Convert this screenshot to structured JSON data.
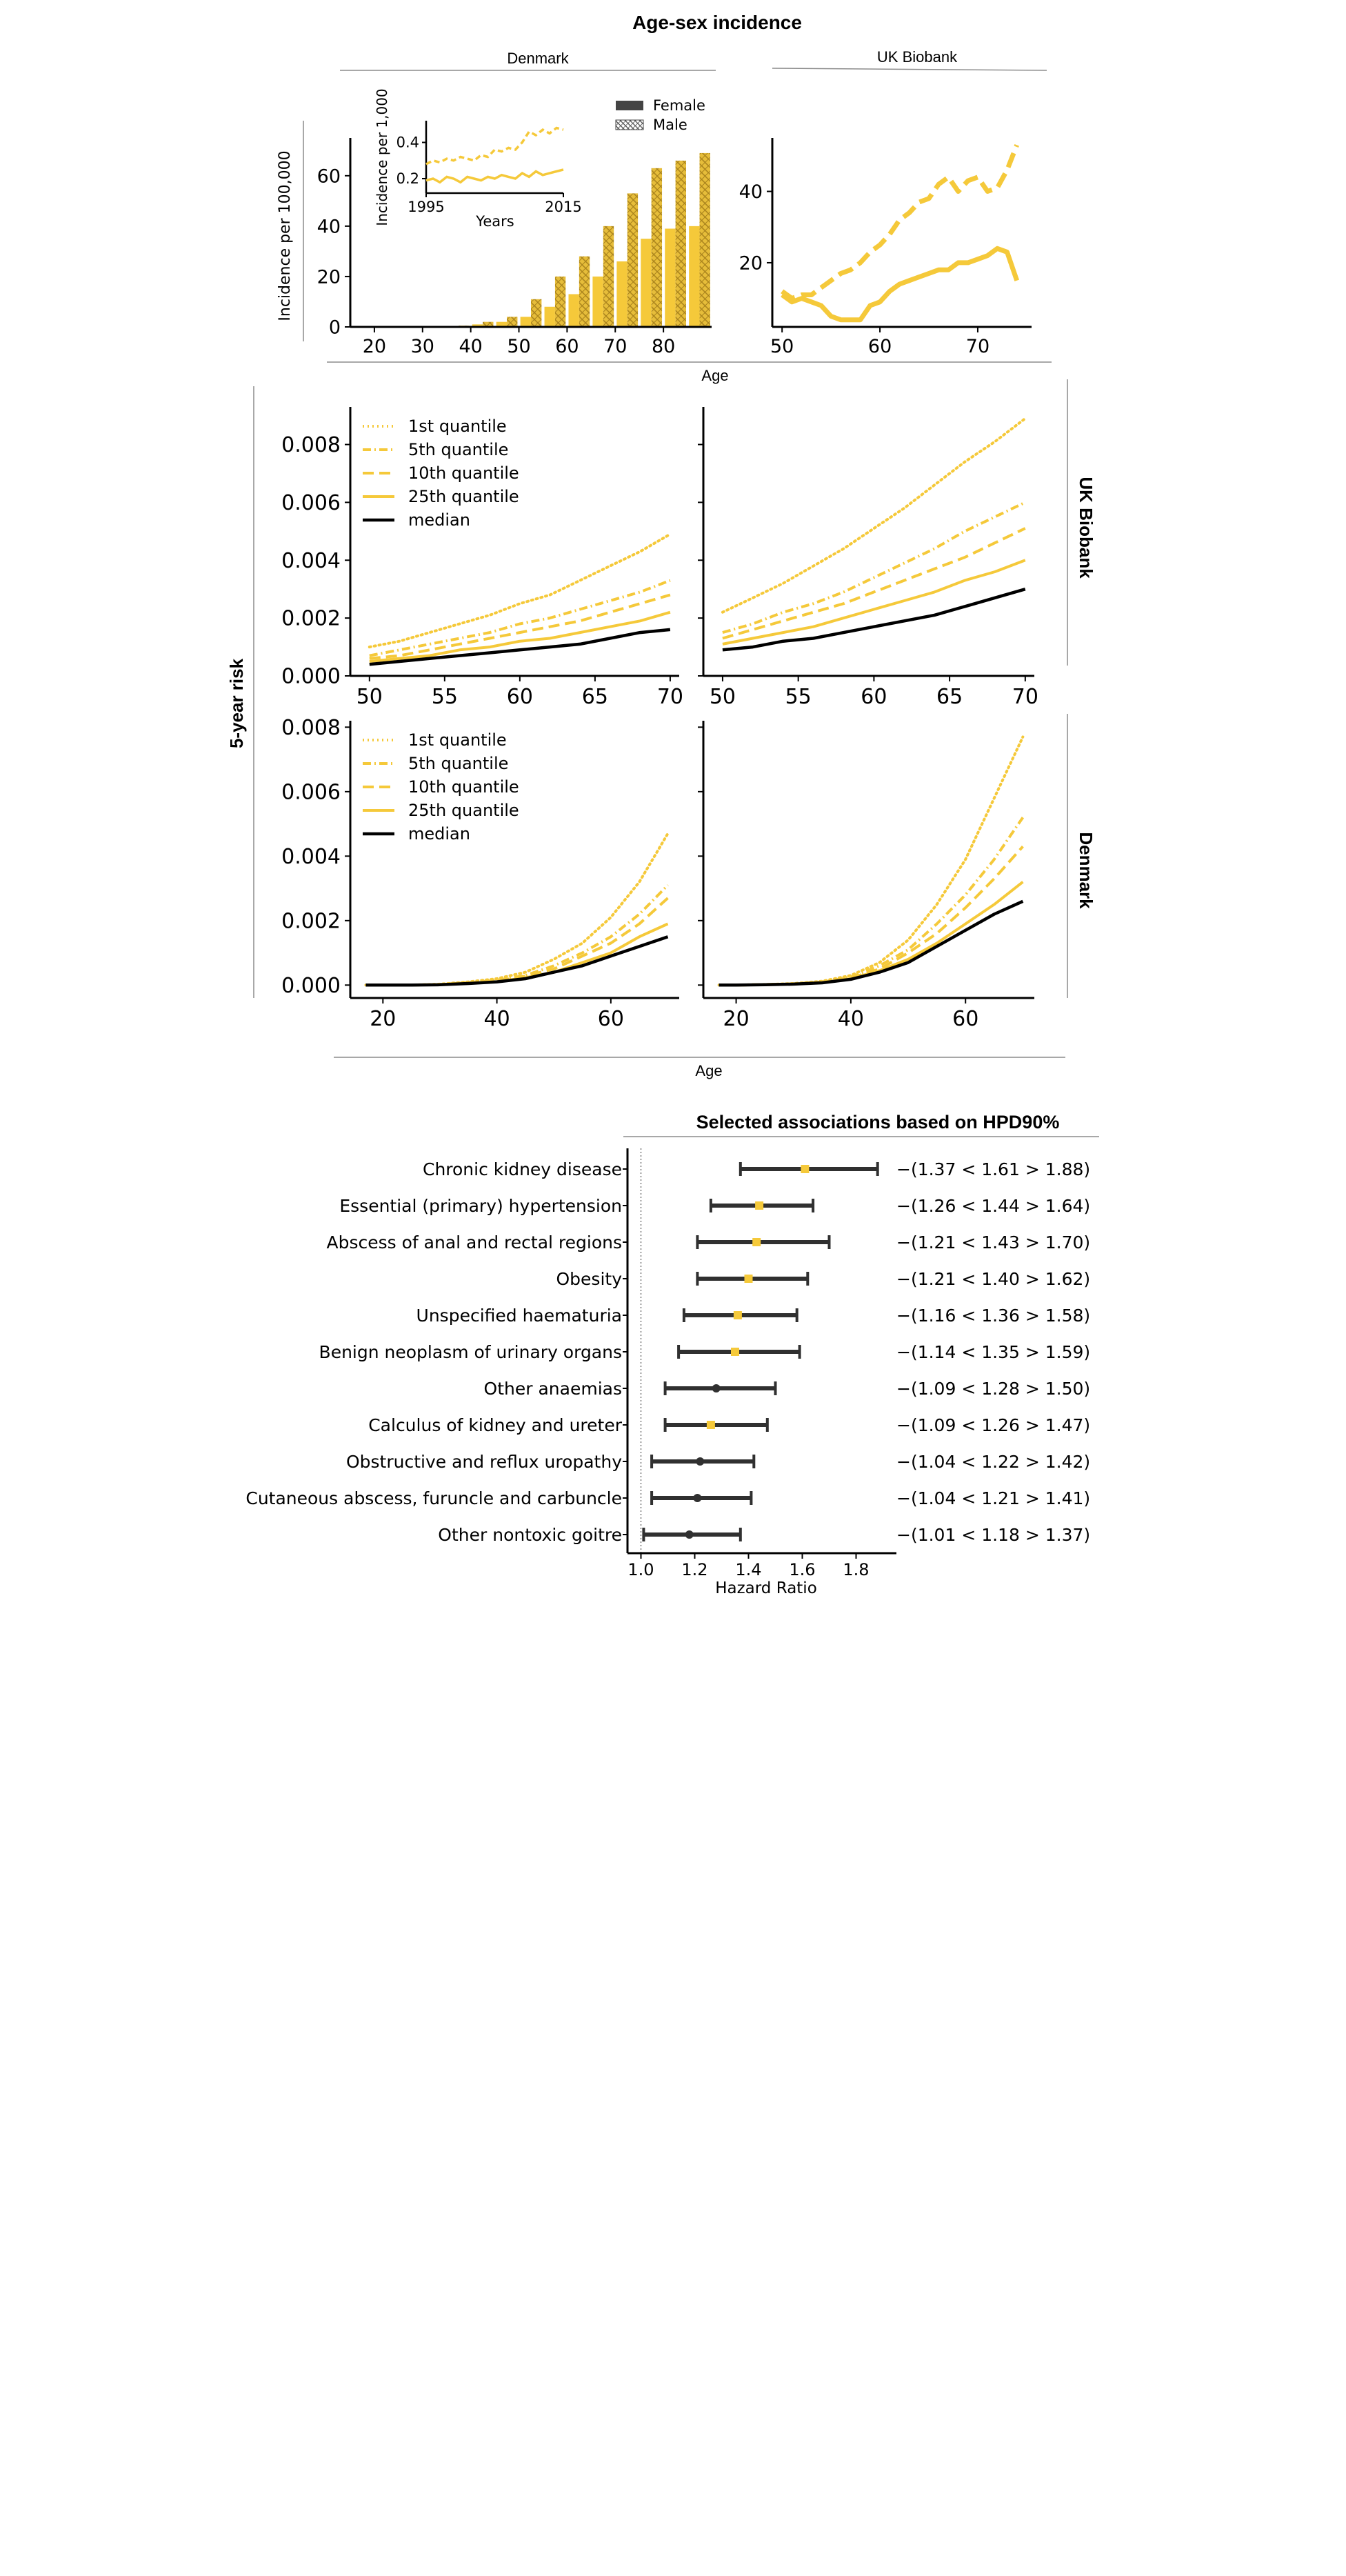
{
  "figure": {
    "title": "Age-sex incidence",
    "shared_xlabel_top": "Age",
    "shared_xlabel_bottom": "Age",
    "risk_ylabel": "5-year risk",
    "row_labels": [
      "UK Biobank",
      "Denmark"
    ],
    "colors": {
      "main": "#f5c93a",
      "dark": "#d9a521",
      "black": "#000000",
      "grey": "#8c8c8c",
      "ci": "#303030"
    }
  },
  "chart_data": [
    {
      "id": "denmark-incidence",
      "type": "bar",
      "title": "Denmark",
      "ylabel": "Incidence per 100,000",
      "xlabel": "",
      "xlim": [
        15,
        90
      ],
      "ylim": [
        0,
        75
      ],
      "xticks": [
        20,
        30,
        40,
        50,
        60,
        70,
        80
      ],
      "yticks": [
        0,
        20,
        40,
        60
      ],
      "legend": {
        "placement": "top-right",
        "entries": [
          "Female",
          "Male"
        ]
      },
      "categories": [
        37.5,
        42.5,
        47.5,
        52.5,
        57.5,
        62.5,
        67.5,
        72.5,
        77.5,
        82.5,
        87.5
      ],
      "series": [
        {
          "name": "Female",
          "values": [
            0.3,
            1,
            2,
            4,
            8,
            13,
            20,
            26,
            35,
            39,
            40
          ]
        },
        {
          "name": "Male",
          "values": [
            0.5,
            2,
            4,
            11,
            20,
            28,
            40,
            53,
            63,
            66,
            69
          ]
        }
      ],
      "inset": {
        "type": "line",
        "ylabel": "Incidence per 1,000",
        "xlabel": "Years",
        "xlim": [
          1995,
          2015
        ],
        "ylim": [
          0.12,
          0.52
        ],
        "xticks": [
          1995,
          2015
        ],
        "yticks": [
          0.2,
          0.4
        ],
        "series": [
          {
            "name": "Female",
            "style": "solid",
            "x": [
              1995,
              1996,
              1997,
              1998,
              1999,
              2000,
              2001,
              2002,
              2003,
              2004,
              2005,
              2006,
              2007,
              2008,
              2009,
              2010,
              2011,
              2012,
              2013,
              2014,
              2015
            ],
            "values": [
              0.19,
              0.2,
              0.18,
              0.21,
              0.2,
              0.18,
              0.21,
              0.2,
              0.19,
              0.21,
              0.2,
              0.22,
              0.21,
              0.2,
              0.23,
              0.21,
              0.24,
              0.22,
              0.23,
              0.24,
              0.25
            ]
          },
          {
            "name": "Male",
            "style": "dashed",
            "x": [
              1995,
              1996,
              1997,
              1998,
              1999,
              2000,
              2001,
              2002,
              2003,
              2004,
              2005,
              2006,
              2007,
              2008,
              2009,
              2010,
              2011,
              2012,
              2013,
              2014,
              2015
            ],
            "values": [
              0.28,
              0.3,
              0.29,
              0.31,
              0.3,
              0.32,
              0.31,
              0.3,
              0.33,
              0.32,
              0.36,
              0.35,
              0.37,
              0.36,
              0.4,
              0.46,
              0.44,
              0.47,
              0.45,
              0.48,
              0.47
            ]
          }
        ]
      }
    },
    {
      "id": "ukb-incidence",
      "type": "line",
      "title": "UK Biobank",
      "xlabel": "",
      "ylabel": "",
      "xlim": [
        49,
        75.5
      ],
      "ylim": [
        2,
        55
      ],
      "xticks": [
        50,
        60,
        70
      ],
      "yticks": [
        20,
        40
      ],
      "series": [
        {
          "name": "Female",
          "style": "solid",
          "x": [
            50,
            51,
            52,
            53,
            54,
            55,
            56,
            57,
            58,
            59,
            60,
            61,
            62,
            63,
            64,
            65,
            66,
            67,
            68,
            69,
            70,
            71,
            72,
            73,
            74
          ],
          "values": [
            11,
            9,
            10,
            9,
            8,
            5,
            4,
            4,
            4,
            8,
            9,
            12,
            14,
            15,
            16,
            17,
            18,
            18,
            20,
            20,
            21,
            22,
            24,
            23,
            15
          ]
        },
        {
          "name": "Male",
          "style": "dashed",
          "x": [
            50,
            51,
            52,
            53,
            54,
            55,
            56,
            57,
            58,
            59,
            60,
            61,
            62,
            63,
            64,
            65,
            66,
            67,
            68,
            69,
            70,
            71,
            72,
            73,
            74
          ],
          "values": [
            12,
            10,
            11,
            11,
            13,
            15,
            17,
            18,
            20,
            23,
            25,
            28,
            32,
            34,
            37,
            38,
            42,
            44,
            40,
            43,
            44,
            40,
            41,
            46,
            53
          ]
        }
      ]
    },
    {
      "id": "risk-ukb-female",
      "type": "line",
      "xlabel": "",
      "ylabel": "",
      "xlim": [
        49,
        70.6
      ],
      "ylim": [
        0,
        0.0093
      ],
      "xticks": [
        50,
        55,
        60,
        65,
        70
      ],
      "yticks": [
        0.0,
        0.002,
        0.004,
        0.006,
        0.008
      ],
      "ytick_labels": [
        "0.000",
        "0.002",
        "0.004",
        "0.006",
        "0.008"
      ],
      "legend": {
        "placement": "top-left",
        "entries": [
          "1st quantile",
          "5th quantile",
          "10th quantile",
          "25th quantile",
          "median"
        ]
      },
      "x": [
        50,
        52,
        54,
        56,
        58,
        60,
        62,
        64,
        66,
        68,
        70
      ],
      "series": [
        {
          "name": "1st quantile",
          "style": "dotted",
          "values": [
            0.001,
            0.0012,
            0.0015,
            0.0018,
            0.0021,
            0.0025,
            0.0028,
            0.0033,
            0.0038,
            0.0043,
            0.0049
          ]
        },
        {
          "name": "5th quantile",
          "style": "dashdot",
          "values": [
            0.0007,
            0.0009,
            0.0011,
            0.0013,
            0.0015,
            0.0018,
            0.002,
            0.0023,
            0.0026,
            0.0029,
            0.0033
          ]
        },
        {
          "name": "10th quantile",
          "style": "dashed",
          "values": [
            0.0006,
            0.0007,
            0.0009,
            0.0011,
            0.0013,
            0.0015,
            0.0017,
            0.0019,
            0.0022,
            0.0025,
            0.0028
          ]
        },
        {
          "name": "25th quantile",
          "style": "solid",
          "values": [
            0.0005,
            0.0006,
            0.0007,
            0.0009,
            0.001,
            0.0012,
            0.0013,
            0.0015,
            0.0017,
            0.0019,
            0.0022
          ]
        },
        {
          "name": "median",
          "style": "median",
          "values": [
            0.0004,
            0.0005,
            0.0006,
            0.0007,
            0.0008,
            0.0009,
            0.001,
            0.0011,
            0.0013,
            0.0015,
            0.0016
          ]
        }
      ]
    },
    {
      "id": "risk-ukb-male",
      "type": "line",
      "xlabel": "",
      "ylabel": "",
      "xlim": [
        49,
        70.6
      ],
      "ylim": [
        0,
        0.0093
      ],
      "xticks": [
        50,
        55,
        60,
        65,
        70
      ],
      "yticks": [
        0.0,
        0.002,
        0.004,
        0.006,
        0.008
      ],
      "x": [
        50,
        52,
        54,
        56,
        58,
        60,
        62,
        64,
        66,
        68,
        70
      ],
      "series": [
        {
          "name": "1st quantile",
          "style": "dotted",
          "values": [
            0.0022,
            0.0027,
            0.0032,
            0.0038,
            0.0044,
            0.0051,
            0.0058,
            0.0066,
            0.0074,
            0.0081,
            0.0089
          ]
        },
        {
          "name": "5th quantile",
          "style": "dashdot",
          "values": [
            0.0015,
            0.0018,
            0.0022,
            0.0025,
            0.0029,
            0.0034,
            0.0039,
            0.0044,
            0.005,
            0.0055,
            0.006
          ]
        },
        {
          "name": "10th quantile",
          "style": "dashed",
          "values": [
            0.0013,
            0.0016,
            0.0019,
            0.0022,
            0.0025,
            0.0029,
            0.0033,
            0.0037,
            0.0041,
            0.0046,
            0.0051
          ]
        },
        {
          "name": "25th quantile",
          "style": "solid",
          "values": [
            0.0011,
            0.0013,
            0.0015,
            0.0017,
            0.002,
            0.0023,
            0.0026,
            0.0029,
            0.0033,
            0.0036,
            0.004
          ]
        },
        {
          "name": "median",
          "style": "median",
          "values": [
            0.0009,
            0.001,
            0.0012,
            0.0013,
            0.0015,
            0.0017,
            0.0019,
            0.0021,
            0.0024,
            0.0027,
            0.003
          ]
        }
      ]
    },
    {
      "id": "risk-dk-female",
      "type": "line",
      "xlabel": "",
      "ylabel": "",
      "xlim": [
        15,
        72
      ],
      "ylim": [
        -0.0004,
        0.0082
      ],
      "xticks": [
        20,
        40,
        60
      ],
      "yticks": [
        0.0,
        0.002,
        0.004,
        0.006,
        0.008
      ],
      "ytick_labels": [
        "0.000",
        "0.002",
        "0.004",
        "0.006",
        "0.008"
      ],
      "legend": {
        "placement": "top-left",
        "entries": [
          "1st quantile",
          "5th quantile",
          "10th quantile",
          "25th quantile",
          "median"
        ]
      },
      "x": [
        17,
        20,
        25,
        30,
        35,
        40,
        45,
        50,
        55,
        60,
        65,
        70
      ],
      "series": [
        {
          "name": "1st quantile",
          "style": "dotted",
          "values": [
            0.0,
            0.0,
            0.0,
            3e-05,
            0.0001,
            0.0002,
            0.0004,
            0.0008,
            0.0013,
            0.0021,
            0.0032,
            0.0047
          ]
        },
        {
          "name": "5th quantile",
          "style": "dashdot",
          "values": [
            0.0,
            0.0,
            0.0,
            2e-05,
            8e-05,
            0.00015,
            0.0003,
            0.0006,
            0.001,
            0.0015,
            0.0022,
            0.0031
          ]
        },
        {
          "name": "10th quantile",
          "style": "dashed",
          "values": [
            0.0,
            0.0,
            0.0,
            2e-05,
            7e-05,
            0.00013,
            0.00028,
            0.0005,
            0.0009,
            0.0013,
            0.0019,
            0.0027
          ]
        },
        {
          "name": "25th quantile",
          "style": "solid",
          "values": [
            0.0,
            0.0,
            0.0,
            2e-05,
            6e-05,
            0.00011,
            0.00023,
            0.0004,
            0.0007,
            0.001,
            0.0015,
            0.0019
          ]
        },
        {
          "name": "median",
          "style": "median",
          "values": [
            0.0,
            0.0,
            0.0,
            1e-05,
            5e-05,
            0.0001,
            0.0002,
            0.0004,
            0.0006,
            0.0009,
            0.0012,
            0.0015
          ]
        }
      ]
    },
    {
      "id": "risk-dk-male",
      "type": "line",
      "xlabel": "",
      "ylabel": "",
      "xlim": [
        15,
        72
      ],
      "ylim": [
        -0.0004,
        0.0082
      ],
      "xticks": [
        20,
        40,
        60
      ],
      "yticks": [
        0.0,
        0.002,
        0.004,
        0.006,
        0.008
      ],
      "x": [
        17,
        20,
        25,
        30,
        35,
        40,
        45,
        50,
        55,
        60,
        65,
        70
      ],
      "series": [
        {
          "name": "1st quantile",
          "style": "dotted",
          "values": [
            0.0,
            0.0,
            2e-05,
            5e-05,
            0.00012,
            0.0003,
            0.0007,
            0.0014,
            0.0025,
            0.0039,
            0.0058,
            0.0077
          ]
        },
        {
          "name": "5th quantile",
          "style": "dashdot",
          "values": [
            0.0,
            0.0,
            2e-05,
            4e-05,
            0.0001,
            0.00025,
            0.0006,
            0.0011,
            0.0019,
            0.0028,
            0.0039,
            0.0052
          ]
        },
        {
          "name": "10th quantile",
          "style": "dashed",
          "values": [
            0.0,
            0.0,
            1e-05,
            4e-05,
            9e-05,
            0.00022,
            0.0005,
            0.001,
            0.0016,
            0.0024,
            0.0033,
            0.0043
          ]
        },
        {
          "name": "25th quantile",
          "style": "solid",
          "values": [
            0.0,
            0.0,
            1e-05,
            3e-05,
            8e-05,
            0.0002,
            0.00045,
            0.0008,
            0.0013,
            0.0019,
            0.0025,
            0.0032
          ]
        },
        {
          "name": "median",
          "style": "median",
          "values": [
            0.0,
            0.0,
            1e-05,
            3e-05,
            7e-05,
            0.00018,
            0.0004,
            0.0007,
            0.0012,
            0.0017,
            0.0022,
            0.0026
          ]
        }
      ]
    },
    {
      "id": "associations",
      "type": "forest",
      "title": "Selected associations based on HPD90%",
      "xlabel": "Hazard Ratio",
      "xlim": [
        0.95,
        1.95
      ],
      "xticks": [
        1.0,
        1.2,
        1.4,
        1.6,
        1.8
      ],
      "xtick_labels": [
        "1.0",
        "1.2",
        "1.4",
        "1.6",
        "1.8"
      ],
      "reference_line": 1.0,
      "rows": [
        {
          "label": "Chronic kidney disease",
          "lower": 1.37,
          "est": 1.61,
          "upper": 1.88,
          "text": "(1.37 < 1.61 > 1.88)",
          "marker": "yellow"
        },
        {
          "label": "Essential (primary) hypertension",
          "lower": 1.26,
          "est": 1.44,
          "upper": 1.64,
          "text": "(1.26 < 1.44 > 1.64)",
          "marker": "yellow"
        },
        {
          "label": "Abscess of anal and rectal regions",
          "lower": 1.21,
          "est": 1.43,
          "upper": 1.7,
          "text": "(1.21 < 1.43 > 1.70)",
          "marker": "yellow"
        },
        {
          "label": "Obesity",
          "lower": 1.21,
          "est": 1.4,
          "upper": 1.62,
          "text": "(1.21 < 1.40 > 1.62)",
          "marker": "yellow"
        },
        {
          "label": "Unspecified haematuria",
          "lower": 1.16,
          "est": 1.36,
          "upper": 1.58,
          "text": "(1.16 < 1.36 > 1.58)",
          "marker": "yellow"
        },
        {
          "label": "Benign neoplasm of urinary organs",
          "lower": 1.14,
          "est": 1.35,
          "upper": 1.59,
          "text": "(1.14 < 1.35 > 1.59)",
          "marker": "yellow"
        },
        {
          "label": "Other anaemias",
          "lower": 1.09,
          "est": 1.28,
          "upper": 1.5,
          "text": "(1.09 < 1.28 > 1.50)",
          "marker": "dark"
        },
        {
          "label": "Calculus of kidney and ureter",
          "lower": 1.09,
          "est": 1.26,
          "upper": 1.47,
          "text": "(1.09 < 1.26 > 1.47)",
          "marker": "yellow"
        },
        {
          "label": "Obstructive and reflux uropathy",
          "lower": 1.04,
          "est": 1.22,
          "upper": 1.42,
          "text": "(1.04 < 1.22 > 1.42)",
          "marker": "dark"
        },
        {
          "label": "Cutaneous abscess, furuncle and carbuncle",
          "lower": 1.04,
          "est": 1.21,
          "upper": 1.41,
          "text": "(1.04 < 1.21 > 1.41)",
          "marker": "dark"
        },
        {
          "label": "Other nontoxic goitre",
          "lower": 1.01,
          "est": 1.18,
          "upper": 1.37,
          "text": "(1.01 < 1.18 > 1.37)",
          "marker": "dark"
        }
      ]
    }
  ]
}
